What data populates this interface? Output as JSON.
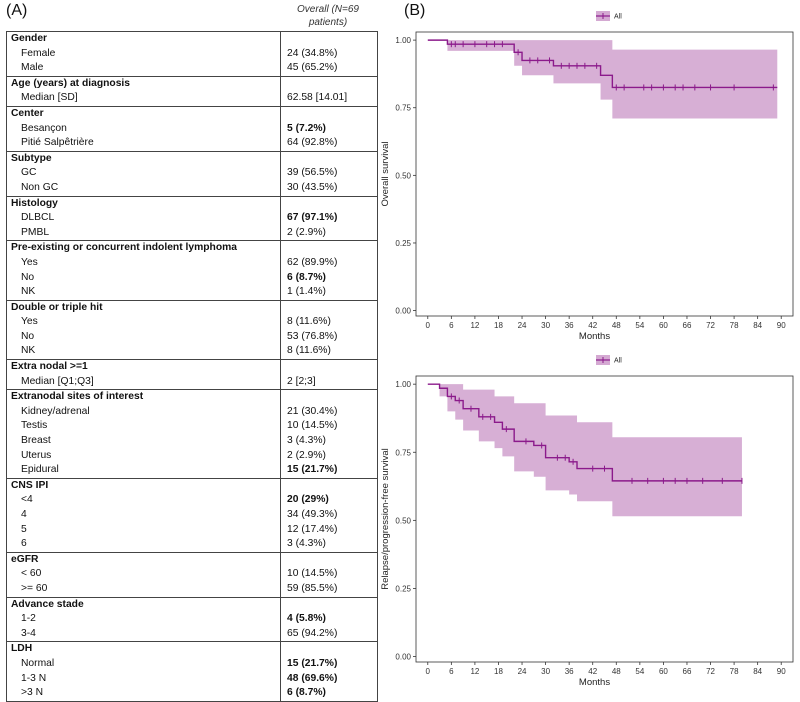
{
  "panel_a": {
    "label": "(A)",
    "header": "Overall (N=69 patients)",
    "groups": [
      {
        "title": "Gender",
        "rows": [
          [
            "Female",
            "24 (34.8%)",
            false
          ],
          [
            "Male",
            "45 (65.2%)",
            false
          ]
        ]
      },
      {
        "title": "Age (years) at diagnosis",
        "rows": [
          [
            "Median [SD]",
            "62.58 [14.01]",
            false
          ]
        ]
      },
      {
        "title": "Center",
        "rows": [
          [
            "Besançon",
            "5 (7.2%)",
            true
          ],
          [
            "Pitié Salpêtrière",
            "64 (92.8%)",
            false
          ]
        ]
      },
      {
        "title": "Subtype",
        "rows": [
          [
            "GC",
            "39 (56.5%)",
            false
          ],
          [
            "Non GC",
            "30 (43.5%)",
            false
          ]
        ]
      },
      {
        "title": "Histology",
        "rows": [
          [
            "DLBCL",
            "67 (97.1%)",
            true
          ],
          [
            "PMBL",
            "2 (2.9%)",
            false
          ]
        ]
      },
      {
        "title": "Pre-existing or concurrent indolent lymphoma",
        "rows": [
          [
            "Yes",
            "62 (89.9%)",
            false
          ],
          [
            "No",
            "6 (8.7%)",
            true
          ],
          [
            "NK",
            "1 (1.4%)",
            false
          ]
        ]
      },
      {
        "title": "Double or triple hit",
        "rows": [
          [
            "Yes",
            "8 (11.6%)",
            false
          ],
          [
            "No",
            "53 (76.8%)",
            false
          ],
          [
            "NK",
            "8 (11.6%)",
            false
          ]
        ]
      },
      {
        "title": "Extra nodal >=1",
        "rows": [
          [
            "Median [Q1;Q3]",
            "2 [2;3]",
            false
          ]
        ]
      },
      {
        "title": "Extranodal sites of interest",
        "rows": [
          [
            "Kidney/adrenal",
            "21 (30.4%)",
            false
          ],
          [
            "Testis",
            "10 (14.5%)",
            false
          ],
          [
            "Breast",
            "3 (4.3%)",
            false
          ],
          [
            "Uterus",
            "2 (2.9%)",
            false
          ],
          [
            "Epidural",
            "15 (21.7%)",
            true
          ]
        ]
      },
      {
        "title": "CNS IPI",
        "rows": [
          [
            "<4",
            "20 (29%)",
            true
          ],
          [
            "4",
            "34 (49.3%)",
            false
          ],
          [
            "5",
            "12 (17.4%)",
            false
          ],
          [
            "6",
            "3 (4.3%)",
            false
          ]
        ]
      },
      {
        "title": "eGFR",
        "rows": [
          [
            "< 60",
            "10 (14.5%)",
            false
          ],
          [
            ">= 60",
            "59 (85.5%)",
            false
          ]
        ]
      },
      {
        "title": "Advance stade",
        "rows": [
          [
            "1-2",
            "4 (5.8%)",
            true
          ],
          [
            "3-4",
            "65 (94.2%)",
            false
          ]
        ]
      },
      {
        "title": "LDH",
        "rows": [
          [
            "Normal",
            "15 (21.7%)",
            true
          ],
          [
            "1-3 N",
            "48 (69.6%)",
            true
          ],
          [
            ">3 N",
            "6 (8.7%)",
            true
          ]
        ]
      }
    ]
  },
  "panel_b": {
    "label": "(B)",
    "colors": {
      "curve": "#8b1a8b",
      "band": "#c994c7"
    },
    "chart_data": [
      {
        "type": "line",
        "legend": "All",
        "ylabel": "Overall survival",
        "xlabel": "Months",
        "xlim": [
          -3,
          93
        ],
        "ylim": [
          -0.02,
          1.03
        ],
        "xticks": [
          0,
          6,
          12,
          18,
          24,
          30,
          36,
          42,
          48,
          54,
          60,
          66,
          72,
          78,
          84,
          90
        ],
        "yticks": [
          "0.00",
          "0.25",
          "0.50",
          "0.75",
          "1.00"
        ],
        "survival": [
          [
            0,
            1.0
          ],
          [
            5,
            1.0
          ],
          [
            5,
            0.985
          ],
          [
            22,
            0.985
          ],
          [
            22,
            0.955
          ],
          [
            24,
            0.955
          ],
          [
            24,
            0.925
          ],
          [
            32,
            0.925
          ],
          [
            32,
            0.905
          ],
          [
            44,
            0.905
          ],
          [
            44,
            0.87
          ],
          [
            47,
            0.87
          ],
          [
            47,
            0.825
          ],
          [
            89,
            0.825
          ]
        ],
        "upper": [
          [
            0,
            1.0
          ],
          [
            89,
            1.0
          ]
        ],
        "lower": [
          [
            0,
            1.0
          ],
          [
            5,
            1.0
          ],
          [
            5,
            0.96
          ],
          [
            22,
            0.96
          ],
          [
            22,
            0.905
          ],
          [
            24,
            0.905
          ],
          [
            24,
            0.87
          ],
          [
            32,
            0.87
          ],
          [
            32,
            0.84
          ],
          [
            44,
            0.84
          ],
          [
            44,
            0.78
          ],
          [
            47,
            0.78
          ],
          [
            47,
            0.71
          ],
          [
            89,
            0.71
          ]
        ],
        "upper_steps": [
          [
            0,
            1.0
          ],
          [
            47,
            1.0
          ],
          [
            47,
            0.965
          ],
          [
            89,
            0.965
          ]
        ],
        "censored": [
          6,
          7,
          9,
          12,
          15,
          17,
          19,
          23,
          26,
          28,
          31,
          34,
          36,
          38,
          40,
          43,
          48,
          50,
          55,
          57,
          60,
          63,
          65,
          68,
          72,
          78,
          88
        ]
      },
      {
        "type": "line",
        "legend": "All",
        "ylabel": "Relapse/progression-free survival",
        "xlabel": "Months",
        "xlim": [
          -3,
          93
        ],
        "ylim": [
          -0.02,
          1.03
        ],
        "xticks": [
          0,
          6,
          12,
          18,
          24,
          30,
          36,
          42,
          48,
          54,
          60,
          66,
          72,
          78,
          84,
          90
        ],
        "yticks": [
          "0.00",
          "0.25",
          "0.50",
          "0.75",
          "1.00"
        ],
        "survival": [
          [
            0,
            1.0
          ],
          [
            3,
            1.0
          ],
          [
            3,
            0.985
          ],
          [
            5,
            0.985
          ],
          [
            5,
            0.955
          ],
          [
            7,
            0.955
          ],
          [
            7,
            0.94
          ],
          [
            9,
            0.94
          ],
          [
            9,
            0.91
          ],
          [
            13,
            0.91
          ],
          [
            13,
            0.88
          ],
          [
            17,
            0.88
          ],
          [
            17,
            0.86
          ],
          [
            19,
            0.86
          ],
          [
            19,
            0.835
          ],
          [
            22,
            0.835
          ],
          [
            22,
            0.79
          ],
          [
            27,
            0.79
          ],
          [
            27,
            0.775
          ],
          [
            30,
            0.775
          ],
          [
            30,
            0.73
          ],
          [
            36,
            0.73
          ],
          [
            36,
            0.715
          ],
          [
            38,
            0.715
          ],
          [
            38,
            0.69
          ],
          [
            47,
            0.69
          ],
          [
            47,
            0.645
          ],
          [
            80,
            0.645
          ]
        ],
        "upper_steps": [
          [
            0,
            1.0
          ],
          [
            9,
            1.0
          ],
          [
            9,
            0.98
          ],
          [
            17,
            0.98
          ],
          [
            17,
            0.955
          ],
          [
            22,
            0.955
          ],
          [
            22,
            0.93
          ],
          [
            30,
            0.93
          ],
          [
            30,
            0.885
          ],
          [
            38,
            0.885
          ],
          [
            38,
            0.86
          ],
          [
            47,
            0.86
          ],
          [
            47,
            0.805
          ],
          [
            80,
            0.805
          ]
        ],
        "lower": [
          [
            0,
            1.0
          ],
          [
            3,
            1.0
          ],
          [
            3,
            0.955
          ],
          [
            5,
            0.955
          ],
          [
            5,
            0.9
          ],
          [
            7,
            0.9
          ],
          [
            7,
            0.87
          ],
          [
            9,
            0.87
          ],
          [
            9,
            0.83
          ],
          [
            13,
            0.83
          ],
          [
            13,
            0.79
          ],
          [
            17,
            0.79
          ],
          [
            17,
            0.765
          ],
          [
            19,
            0.765
          ],
          [
            19,
            0.735
          ],
          [
            22,
            0.735
          ],
          [
            22,
            0.68
          ],
          [
            27,
            0.68
          ],
          [
            27,
            0.66
          ],
          [
            30,
            0.66
          ],
          [
            30,
            0.61
          ],
          [
            36,
            0.61
          ],
          [
            36,
            0.595
          ],
          [
            38,
            0.595
          ],
          [
            38,
            0.57
          ],
          [
            47,
            0.57
          ],
          [
            47,
            0.515
          ],
          [
            80,
            0.515
          ]
        ],
        "censored": [
          6,
          8,
          11,
          14,
          16,
          20,
          25,
          29,
          33,
          35,
          37,
          42,
          45,
          52,
          56,
          60,
          63,
          66,
          70,
          75,
          80
        ]
      }
    ]
  }
}
